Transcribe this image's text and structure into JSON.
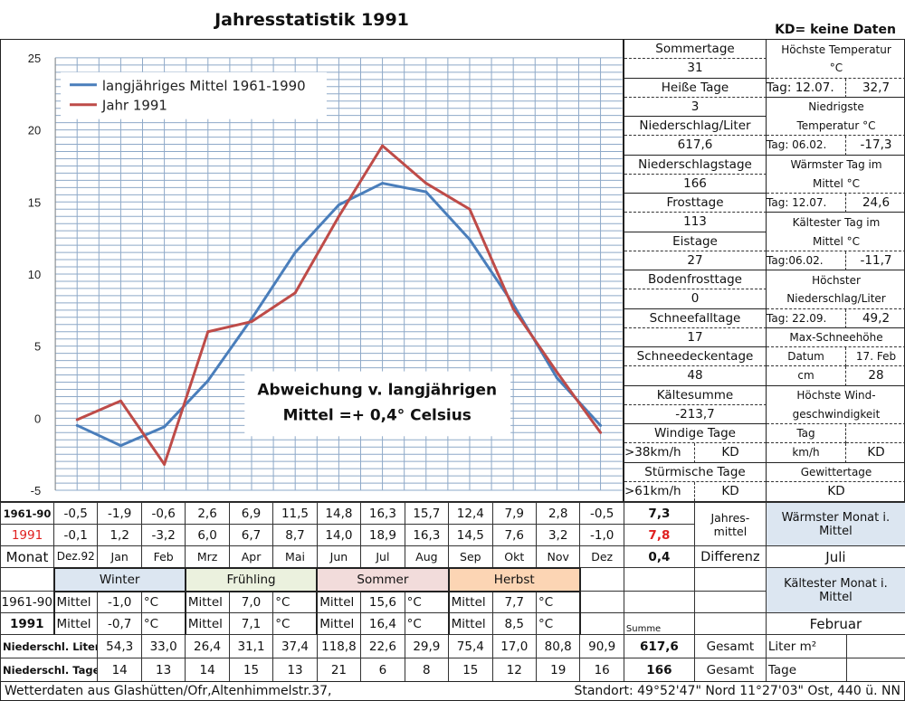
{
  "title": "Jahresstatistik 1991",
  "kd_note": "KD= keine Daten",
  "chart_data": {
    "type": "line",
    "categories": [
      "Dez.92",
      "Jan",
      "Feb",
      "Mrz",
      "Apr",
      "Mai",
      "Jun",
      "Jul",
      "Aug",
      "Sep",
      "Okt",
      "Nov",
      "Dez"
    ],
    "ylim": [
      -5,
      25
    ],
    "yticks": [
      "25",
      "20",
      "15",
      "10",
      "5",
      "0",
      "-5"
    ],
    "grid": true,
    "legend_position": "top-left",
    "series": [
      {
        "name": "langjähriges Mittel 1961-1990",
        "color": "#4a7ebb",
        "values": [
          -0.5,
          -1.9,
          -0.6,
          2.6,
          6.9,
          11.5,
          14.8,
          16.3,
          15.7,
          12.4,
          7.9,
          2.8,
          -0.5
        ]
      },
      {
        "name": "Jahr 1991",
        "color": "#be4b48",
        "values": [
          -0.1,
          1.2,
          -3.2,
          6.0,
          6.7,
          8.7,
          14.0,
          18.9,
          16.3,
          14.5,
          7.6,
          3.2,
          -1.0
        ]
      }
    ],
    "annotation": [
      "Abweichung v. langjährigen",
      "Mittel =+ 0,4° Celsius"
    ]
  },
  "stats": {
    "sommertage": "Sommertage",
    "sommertage_v": "31",
    "heisse": "Heiße Tage",
    "heisse_v": "3",
    "nied": "Niederschlag/Liter",
    "nied_v": "617,6",
    "niedtage": "Niederschlagstage",
    "niedtage_v": "166",
    "frost": "Frosttage",
    "frost_v": "113",
    "eis": "Eistage",
    "eis_v": "27",
    "boden": "Bodenfrosttage",
    "boden_v": "0",
    "schneefall": "Schneefalltage",
    "schneefall_v": "17",
    "schneedecke": "Schneedeckentage",
    "schneedecke_v": "48",
    "kaelte": "Kältesumme",
    "kaelte_v": "-213,7",
    "windig": "Windige Tage",
    "windig_l": ">38km/h",
    "windig_v": "KD",
    "sturm": "Stürmische Tage",
    "sturm_l": ">61km/h",
    "sturm_v": "KD"
  },
  "extremes": {
    "tmax1": "Höchste Temperatur",
    "tmax2": "°C",
    "tmax_tag": "Tag: 12.07.",
    "tmax_v": "32,7",
    "tmin1": "Niedrigste",
    "tmin2": "Temperatur °C",
    "tmin_tag": "Tag: 06.02.",
    "tmin_v": "-17,3",
    "warm1": "Wärmster Tag im",
    "warm2": "Mittel °C",
    "warm_tag": "Tag: 12.07.",
    "warm_v": "24,6",
    "kalt1": "Kältester Tag im",
    "kalt2": "Mittel °C",
    "kalt_tag": "Tag:06.02.",
    "kalt_v": "-11,7",
    "niedmax1": "Höchster",
    "niedmax2": "Niederschlag/Liter",
    "niedmax_tag": "Tag: 22.09.",
    "niedmax_v": "49,2",
    "schnee": "Max-Schneehöhe",
    "schnee_datum": "Datum",
    "schnee_datum_v": "17. Feb",
    "schnee_cm": "cm",
    "schnee_cm_v": "28",
    "wind1": "Höchste Wind-",
    "wind2": "geschwindigkeit",
    "wind_tag": "Tag",
    "wind_tag_v": "",
    "wind_kmh": "km/h",
    "wind_kmh_v": "KD",
    "gewitter": "Gewittertage",
    "gewitter_v": "KD"
  },
  "table": {
    "row_mittel_label": "1961-90",
    "row_mittel": [
      "-0,5",
      "-1,9",
      "-0,6",
      "2,6",
      "6,9",
      "11,5",
      "14,8",
      "16,3",
      "15,7",
      "12,4",
      "7,9",
      "2,8",
      "-0,5"
    ],
    "mittel_jahr": "7,3",
    "row_1991_label": "1991",
    "row_1991": [
      "-0,1",
      "1,2",
      "-3,2",
      "6,0",
      "6,7",
      "8,7",
      "14,0",
      "18,9",
      "16,3",
      "14,5",
      "7,6",
      "3,2",
      "-1,0"
    ],
    "jahr_1991": "7,8",
    "jahresmittel": "Jahres-mittel",
    "monat_label": "Monat",
    "monate": [
      "Dez.92",
      "Jan",
      "Feb",
      "Mrz",
      "Apr",
      "Mai",
      "Jun",
      "Jul",
      "Aug",
      "Sep",
      "Okt",
      "Nov",
      "Dez"
    ],
    "differenz_v": "0,4",
    "differenz": "Differenz",
    "waermster": "Wärmster Monat i. Mittel",
    "waermster_v": "Juli",
    "kaeltester": "Kältester Monat i. Mittel",
    "kaeltester_v": "Februar",
    "seasons": [
      {
        "name": "Winter",
        "m1": "-1,0",
        "m2": "-0,7"
      },
      {
        "name": "Frühling",
        "m1": "7,0",
        "m2": "7,1"
      },
      {
        "name": "Sommer",
        "m1": "15,6",
        "m2": "16,4"
      },
      {
        "name": "Herbst",
        "m1": "7,7",
        "m2": "8,5"
      }
    ],
    "season_row1": "1961-90",
    "season_row2": "1991",
    "mittel": "Mittel",
    "unit": "°C",
    "summe": "Summe",
    "nl_label": "Niederschl. Liter",
    "nl": [
      "54,3",
      "33,0",
      "26,4",
      "31,1",
      "37,4",
      "118,8",
      "22,6",
      "29,9",
      "75,4",
      "17,0",
      "80,8",
      "90,9"
    ],
    "nl_sum": "617,6",
    "nt_label": "Niederschl. Tage",
    "nt": [
      "14",
      "13",
      "14",
      "15",
      "13",
      "21",
      "6",
      "8",
      "15",
      "12",
      "19",
      "16"
    ],
    "nt_sum": "166",
    "gesamt": "Gesamt",
    "liter": "Liter m²",
    "tage": "Tage"
  },
  "footer": {
    "left": "Wetterdaten aus Glashütten/Ofr,Altenhimmelstr.37,",
    "right": "Standort:  49°52'47\" Nord    11°27'03\" Ost, 440 ü. NN"
  }
}
